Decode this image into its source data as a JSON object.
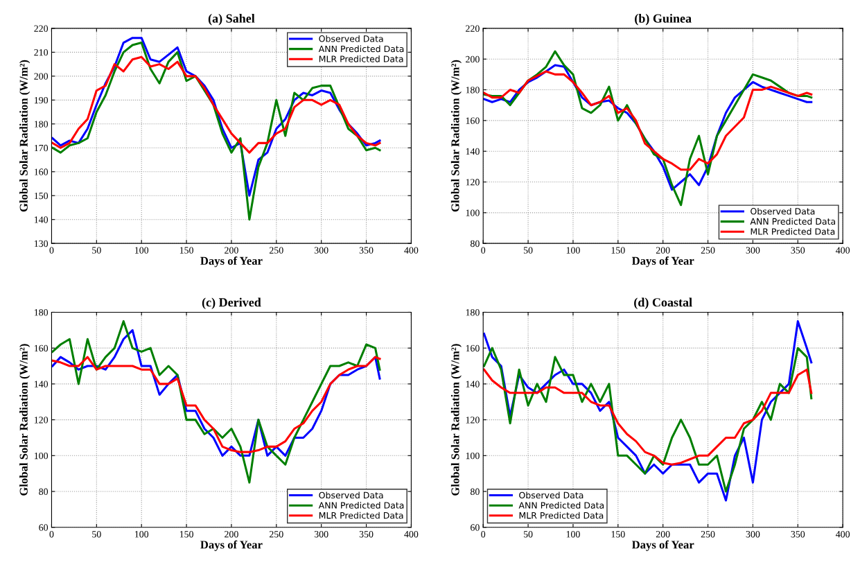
{
  "chart_data": [
    {
      "type": "line",
      "title": "(a) Sahel",
      "xlabel": "Days of Year",
      "ylabel": "Global Solar Radiation (W/m²)",
      "legend": "top right",
      "grid": true,
      "xlim": [
        0,
        400
      ],
      "xticks": [
        0,
        50,
        100,
        150,
        200,
        250,
        300,
        350,
        400
      ],
      "ylim": [
        130,
        220
      ],
      "yticks": [
        130,
        140,
        150,
        160,
        170,
        180,
        190,
        200,
        210,
        220
      ],
      "x": [
        1,
        10,
        20,
        30,
        40,
        50,
        60,
        70,
        80,
        90,
        100,
        110,
        120,
        130,
        140,
        150,
        160,
        170,
        180,
        190,
        200,
        210,
        220,
        230,
        240,
        250,
        260,
        270,
        280,
        290,
        300,
        310,
        320,
        330,
        340,
        350,
        360,
        365
      ],
      "series": [
        {
          "name": "Observed Data",
          "color": "#0000ff",
          "values": [
            174,
            171,
            173,
            172,
            178,
            188,
            197,
            204,
            214,
            216,
            216,
            207,
            206,
            209,
            212,
            202,
            200,
            196,
            190,
            178,
            170,
            172,
            150,
            165,
            168,
            178,
            182,
            190,
            193,
            192,
            194,
            193,
            186,
            180,
            176,
            171,
            172,
            173
          ]
        },
        {
          "name": "ANN Predicted Data",
          "color": "#007f00",
          "values": [
            170,
            168,
            171,
            172,
            174,
            185,
            192,
            202,
            210,
            213,
            214,
            203,
            197,
            206,
            210,
            198,
            200,
            194,
            188,
            176,
            168,
            174,
            140,
            162,
            172,
            190,
            175,
            193,
            190,
            195,
            196,
            196,
            187,
            178,
            175,
            169,
            170,
            169
          ]
        },
        {
          "name": "MLR Predicted Data",
          "color": "#ff0000",
          "values": [
            172,
            170,
            172,
            178,
            182,
            194,
            196,
            205,
            202,
            207,
            208,
            204,
            205,
            203,
            206,
            200,
            200,
            195,
            188,
            182,
            176,
            172,
            168,
            172,
            172,
            176,
            178,
            187,
            190,
            190,
            188,
            190,
            188,
            180,
            175,
            172,
            171,
            172
          ]
        }
      ]
    },
    {
      "type": "line",
      "title": "(b) Guinea",
      "xlabel": "Days of Year",
      "ylabel": "Global Solar Radiation (W/m²)",
      "legend": "bottom right",
      "grid": true,
      "xlim": [
        0,
        400
      ],
      "xticks": [
        0,
        50,
        100,
        150,
        200,
        250,
        300,
        350,
        400
      ],
      "ylim": [
        80,
        220
      ],
      "yticks": [
        80,
        100,
        120,
        140,
        160,
        180,
        200,
        220
      ],
      "x": [
        1,
        10,
        20,
        30,
        40,
        50,
        60,
        70,
        80,
        90,
        100,
        110,
        120,
        130,
        140,
        150,
        160,
        170,
        180,
        190,
        200,
        210,
        220,
        230,
        240,
        250,
        260,
        270,
        280,
        290,
        300,
        310,
        320,
        330,
        340,
        350,
        360,
        365
      ],
      "series": [
        {
          "name": "Observed Data",
          "color": "#0000ff",
          "values": [
            174,
            172,
            174,
            172,
            180,
            185,
            188,
            192,
            196,
            195,
            185,
            175,
            170,
            172,
            173,
            168,
            165,
            158,
            148,
            140,
            130,
            115,
            120,
            125,
            118,
            130,
            150,
            165,
            175,
            180,
            185,
            182,
            180,
            178,
            176,
            174,
            172,
            172
          ]
        },
        {
          "name": "ANN Predicted Data",
          "color": "#007f00",
          "values": [
            177,
            176,
            176,
            170,
            178,
            186,
            190,
            195,
            205,
            196,
            190,
            168,
            165,
            170,
            182,
            160,
            170,
            158,
            148,
            138,
            135,
            118,
            105,
            135,
            150,
            125,
            150,
            160,
            170,
            180,
            190,
            188,
            186,
            182,
            178,
            176,
            176,
            175
          ]
        },
        {
          "name": "MLR Predicted Data",
          "color": "#ff0000",
          "values": [
            178,
            175,
            175,
            180,
            178,
            186,
            189,
            192,
            190,
            190,
            185,
            178,
            170,
            172,
            176,
            165,
            168,
            160,
            145,
            140,
            135,
            132,
            128,
            128,
            135,
            132,
            138,
            150,
            156,
            162,
            180,
            180,
            182,
            180,
            178,
            176,
            178,
            177
          ]
        }
      ]
    },
    {
      "type": "line",
      "title": "(c) Derived",
      "xlabel": "Days of Year",
      "ylabel": "Global Solar Radiation (W/m²)",
      "legend": "bottom right",
      "grid": true,
      "xlim": [
        0,
        400
      ],
      "xticks": [
        0,
        50,
        100,
        150,
        200,
        250,
        300,
        350,
        400
      ],
      "ylim": [
        60,
        180
      ],
      "yticks": [
        60,
        80,
        100,
        120,
        140,
        160,
        180
      ],
      "x": [
        1,
        10,
        20,
        30,
        40,
        50,
        60,
        70,
        80,
        90,
        100,
        110,
        120,
        130,
        140,
        150,
        160,
        170,
        180,
        190,
        200,
        210,
        220,
        230,
        240,
        250,
        260,
        270,
        280,
        290,
        300,
        310,
        320,
        330,
        340,
        350,
        360,
        365
      ],
      "series": [
        {
          "name": "Observed Data",
          "color": "#0000ff",
          "values": [
            150,
            155,
            152,
            148,
            150,
            150,
            148,
            155,
            165,
            170,
            150,
            150,
            134,
            140,
            145,
            125,
            125,
            115,
            110,
            100,
            105,
            100,
            100,
            120,
            100,
            105,
            100,
            110,
            110,
            115,
            125,
            140,
            145,
            145,
            148,
            150,
            155,
            143
          ]
        },
        {
          "name": "ANN Predicted Data",
          "color": "#007f00",
          "values": [
            158,
            162,
            165,
            140,
            165,
            148,
            155,
            160,
            175,
            160,
            158,
            160,
            145,
            150,
            145,
            120,
            120,
            112,
            115,
            110,
            115,
            105,
            85,
            120,
            105,
            100,
            95,
            110,
            120,
            130,
            140,
            150,
            150,
            152,
            150,
            162,
            160,
            148
          ]
        },
        {
          "name": "MLR Predicted Data",
          "color": "#ff0000",
          "values": [
            153,
            152,
            150,
            150,
            155,
            148,
            150,
            150,
            150,
            150,
            148,
            148,
            140,
            140,
            143,
            128,
            128,
            120,
            115,
            105,
            103,
            102,
            102,
            103,
            105,
            105,
            108,
            115,
            118,
            125,
            130,
            140,
            145,
            148,
            150,
            150,
            155,
            154
          ]
        }
      ]
    },
    {
      "type": "line",
      "title": "(d) Coastal",
      "xlabel": "Days of Year",
      "ylabel": "Global Solar Radiation (W/m²)",
      "legend": "bottom left",
      "grid": true,
      "xlim": [
        0,
        400
      ],
      "xticks": [
        0,
        50,
        100,
        150,
        200,
        250,
        300,
        350,
        400
      ],
      "ylim": [
        60,
        180
      ],
      "yticks": [
        60,
        80,
        100,
        120,
        140,
        160,
        180
      ],
      "x": [
        1,
        10,
        20,
        30,
        40,
        50,
        60,
        70,
        80,
        90,
        100,
        110,
        120,
        130,
        140,
        150,
        160,
        170,
        180,
        190,
        200,
        210,
        220,
        230,
        240,
        250,
        260,
        270,
        280,
        290,
        300,
        310,
        320,
        330,
        340,
        350,
        360,
        365
      ],
      "series": [
        {
          "name": "Observed Data",
          "color": "#0000ff",
          "values": [
            168,
            155,
            150,
            122,
            145,
            138,
            135,
            140,
            145,
            148,
            140,
            140,
            135,
            125,
            130,
            110,
            105,
            100,
            90,
            95,
            90,
            95,
            95,
            95,
            85,
            90,
            90,
            75,
            100,
            110,
            85,
            120,
            130,
            135,
            140,
            175,
            160,
            152
          ]
        },
        {
          "name": "ANN Predicted Data",
          "color": "#007f00",
          "values": [
            150,
            160,
            148,
            118,
            148,
            128,
            140,
            130,
            155,
            145,
            145,
            130,
            140,
            130,
            140,
            100,
            100,
            95,
            90,
            100,
            95,
            110,
            120,
            110,
            95,
            95,
            100,
            80,
            95,
            115,
            120,
            130,
            120,
            140,
            135,
            160,
            155,
            132
          ]
        },
        {
          "name": "MLR Predicted Data",
          "color": "#ff0000",
          "values": [
            148,
            142,
            138,
            135,
            135,
            135,
            135,
            138,
            138,
            135,
            135,
            135,
            130,
            128,
            128,
            118,
            112,
            108,
            102,
            100,
            96,
            95,
            96,
            98,
            100,
            100,
            105,
            110,
            110,
            118,
            120,
            125,
            135,
            135,
            135,
            145,
            148,
            135
          ]
        }
      ]
    }
  ]
}
